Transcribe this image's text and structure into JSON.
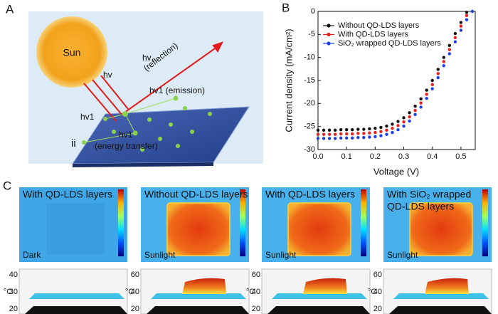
{
  "panel_a": {
    "label": "A",
    "sun": "Sun",
    "hv_1": "hv",
    "hv_2": "hv",
    "reflection": "(reflection)",
    "emission": "hv1 (emission)",
    "hv1_left": "hv1",
    "hv1_transfer": "hv1",
    "energy_transfer": "(energy transfer)",
    "ii": "ii"
  },
  "chart_data": {
    "panel_label": "B",
    "type": "scatter",
    "x_label": "Voltage (V)",
    "y_label": "Current density (mA/cm²)",
    "x": [
      0,
      0.02,
      0.04,
      0.06,
      0.08,
      0.1,
      0.12,
      0.14,
      0.16,
      0.18,
      0.2,
      0.22,
      0.24,
      0.26,
      0.28,
      0.3,
      0.32,
      0.34,
      0.36,
      0.38,
      0.4,
      0.42,
      0.44,
      0.46,
      0.48,
      0.5,
      0.52,
      0.54
    ],
    "series": [
      {
        "name": "Without QD-LDS layers",
        "color": "#111111",
        "values": [
          -25.8,
          -25.8,
          -25.8,
          -25.8,
          -25.7,
          -25.7,
          -25.7,
          -25.6,
          -25.6,
          -25.5,
          -25.4,
          -25.2,
          -24.9,
          -24.5,
          -23.9,
          -23.1,
          -22.0,
          -20.6,
          -19.0,
          -17.1,
          -15.0,
          -12.6,
          -10.0,
          -7.4,
          -4.8,
          -2.4,
          -0.2,
          null
        ]
      },
      {
        "name": "With QD-LDS layers",
        "color": "#e8201e",
        "values": [
          -26.7,
          -26.7,
          -26.7,
          -26.7,
          -26.6,
          -26.6,
          -26.6,
          -26.5,
          -26.5,
          -26.4,
          -26.3,
          -26.1,
          -25.8,
          -25.4,
          -24.8,
          -24.0,
          -22.9,
          -21.5,
          -19.9,
          -18.0,
          -15.9,
          -13.5,
          -10.9,
          -8.3,
          -5.7,
          -3.2,
          -0.9,
          null
        ]
      },
      {
        "name": "SiO₂ wrapped QD-LDS layers",
        "color": "#1f3fe0",
        "values": [
          -27.6,
          -27.6,
          -27.6,
          -27.6,
          -27.5,
          -27.5,
          -27.5,
          -27.4,
          -27.4,
          -27.3,
          -27.2,
          -27.0,
          -26.7,
          -26.3,
          -25.7,
          -24.9,
          -23.8,
          -22.4,
          -20.8,
          -18.9,
          -16.8,
          -14.4,
          -11.8,
          -9.2,
          -6.6,
          -4.1,
          -1.8,
          0
        ]
      }
    ],
    "xlim": [
      0,
      0.55
    ],
    "xticks": [
      {
        "value": 0,
        "label": "0.0"
      },
      0.1,
      0.2,
      0.3,
      0.4,
      0.5
    ],
    "ylim": [
      -30,
      0
    ],
    "yticks": [
      0,
      -5,
      -10,
      -15,
      -20,
      -25,
      -30
    ],
    "legend": "upper-left"
  },
  "panel_c": {
    "label": "C",
    "unit": "°C",
    "images": [
      {
        "caption": [
          "With QD-LDS layers"
        ],
        "condition": "Dark",
        "scale_ticks": [
          40,
          30,
          20
        ]
      },
      {
        "caption": [
          "Without QD-LDS layers"
        ],
        "condition": "Sunlight",
        "scale_ticks": [
          60,
          40,
          20
        ]
      },
      {
        "caption": [
          "With QD-LDS layers"
        ],
        "condition": "Sunlight",
        "scale_ticks": [
          60,
          40,
          20
        ]
      },
      {
        "caption": [
          "With SiO₂ wrapped",
          "QD-LDS layers"
        ],
        "condition": "Sunlight",
        "scale_ticks": [
          60,
          40,
          20
        ]
      }
    ]
  }
}
